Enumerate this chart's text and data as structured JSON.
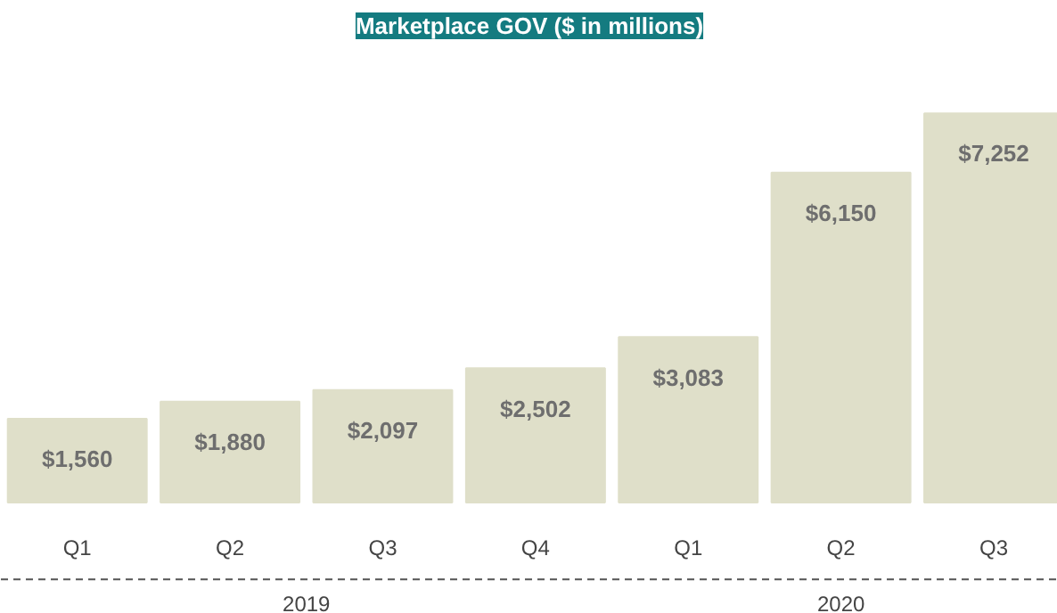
{
  "chart_data": {
    "type": "bar",
    "title": "Marketplace GOV ($ in millions)",
    "categories": [
      "Q1",
      "Q2",
      "Q3",
      "Q4",
      "Q1",
      "Q2",
      "Q3"
    ],
    "values": [
      1560,
      1880,
      2097,
      2502,
      3083,
      6150,
      7252
    ],
    "value_labels": [
      "$1,560",
      "$1,880",
      "$2,097",
      "$2,502",
      "$3,083",
      "$6,150",
      "$7,252"
    ],
    "color": "#dfdfc9",
    "annotations": [
      "2019",
      "2020"
    ]
  }
}
